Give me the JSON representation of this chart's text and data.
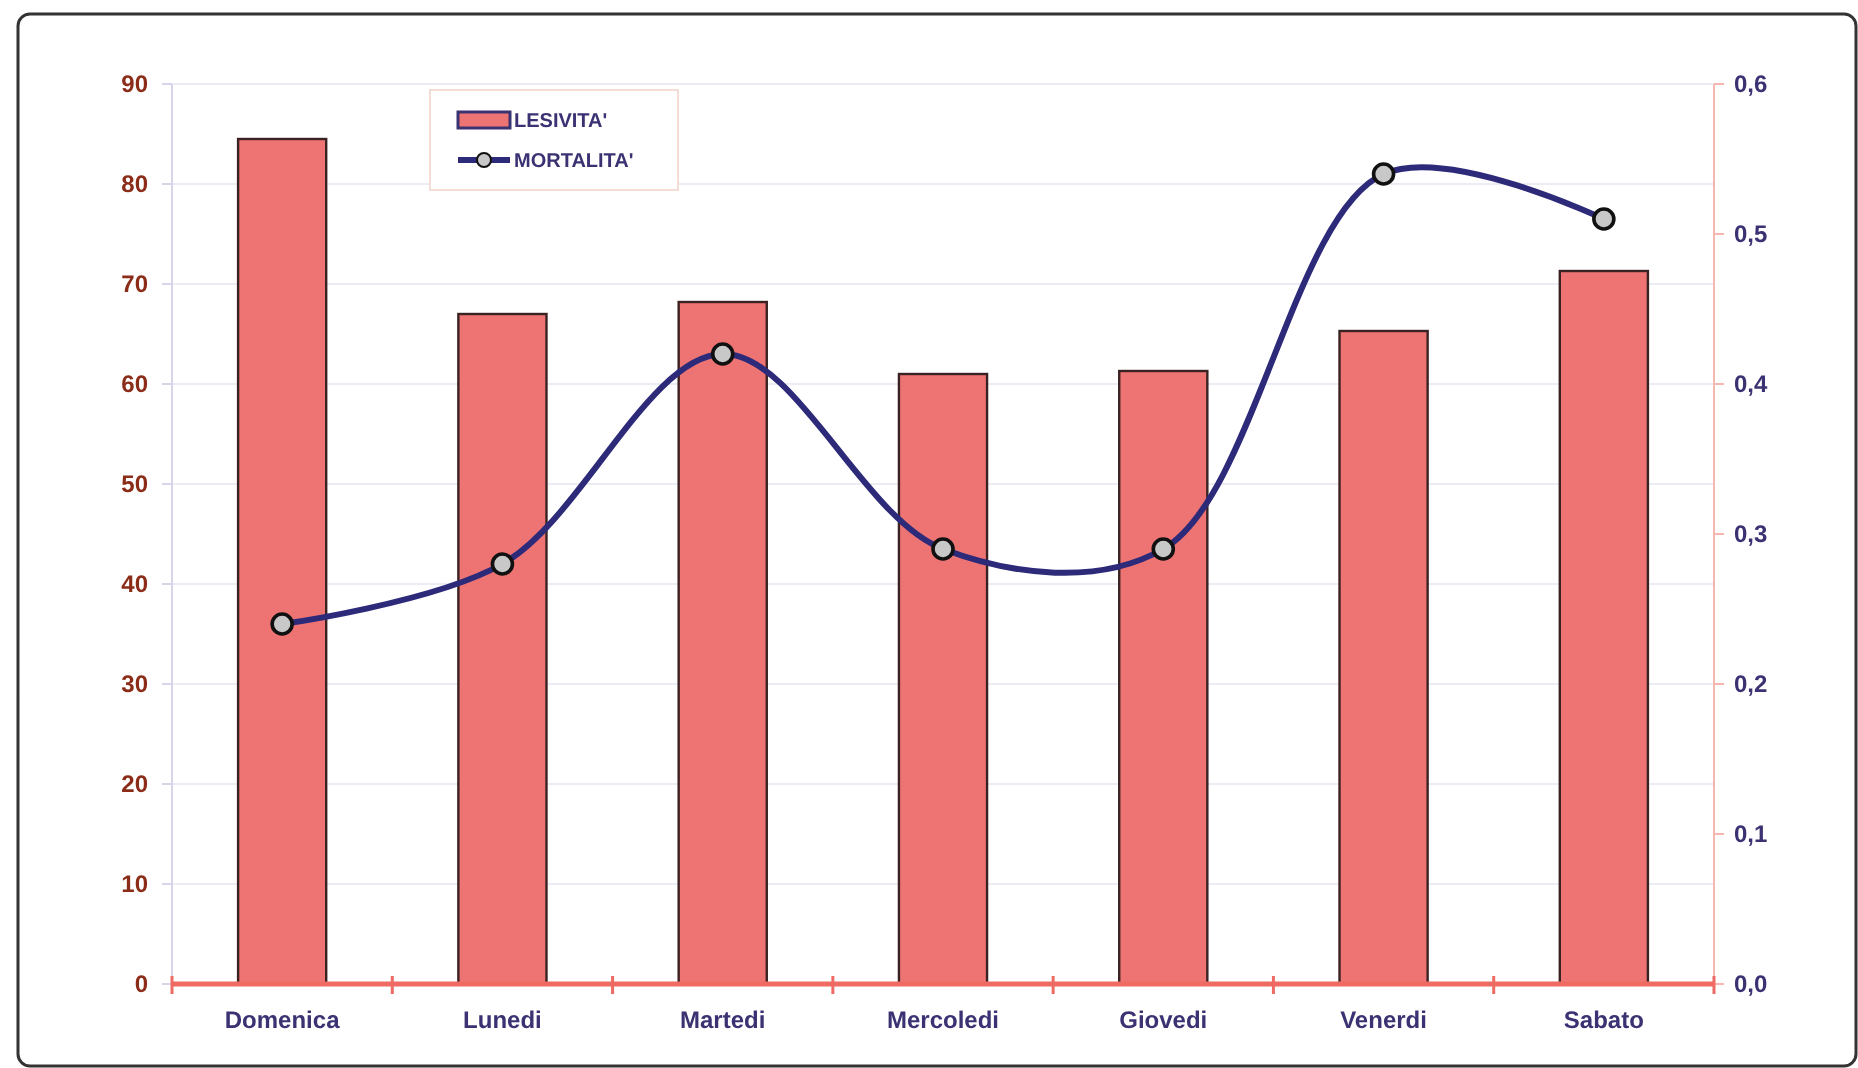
{
  "chart_data": {
    "type": "bar",
    "categories": [
      "Domenica",
      "Lunedi",
      "Martedi",
      "Mercoledi",
      "Giovedi",
      "Venerdi",
      "Sabato"
    ],
    "series": [
      {
        "name": "LESIVITA'",
        "color": "#ee7474",
        "values": [
          84.5,
          67,
          68.2,
          61,
          61.3,
          65.3,
          71.3
        ]
      },
      {
        "name": "MORTALITA'",
        "type": "line",
        "axis": "y2",
        "color": "#2e2a7a",
        "values": [
          0.24,
          0.28,
          0.42,
          0.29,
          0.29,
          0.54,
          0.51
        ]
      }
    ],
    "ylim": [
      0,
      90
    ],
    "yticks": [
      0,
      10,
      20,
      30,
      40,
      50,
      60,
      70,
      80,
      90
    ],
    "y2lim": [
      0,
      0.6
    ],
    "y2ticks": [
      {
        "value": 0,
        "label": "0,0"
      },
      {
        "value": 0.1,
        "label": "0,1"
      },
      {
        "value": 0.2,
        "label": "0,2"
      },
      {
        "value": 0.3,
        "label": "0,3"
      },
      {
        "value": 0.4,
        "label": "0,4"
      },
      {
        "value": 0.5,
        "label": "0,5"
      },
      {
        "value": 0.6,
        "label": "0,6"
      }
    ],
    "grid": "y",
    "legend": "top left",
    "marker": "circle"
  }
}
